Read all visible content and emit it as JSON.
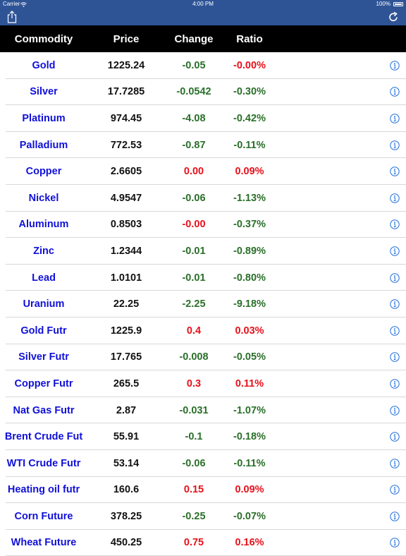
{
  "status_bar": {
    "carrier": "Carrier",
    "time": "4:00 PM",
    "battery": "100%"
  },
  "nav": {
    "left_icon": "share-icon",
    "right_icon": "refresh-icon",
    "bar_color": "#2f5496"
  },
  "table": {
    "headers": {
      "name": "Commodity",
      "price": "Price",
      "change": "Change",
      "ratio": "Ratio"
    },
    "rows": [
      {
        "name": "Gold",
        "price": "1225.24",
        "change": "-0.05",
        "ratio": "-0.00%",
        "change_dir": "up",
        "ratio_dir": "down"
      },
      {
        "name": "Silver",
        "price": "17.7285",
        "change": "-0.0542",
        "ratio": "-0.30%",
        "change_dir": "up",
        "ratio_dir": "up"
      },
      {
        "name": "Platinum",
        "price": "974.45",
        "change": "-4.08",
        "ratio": "-0.42%",
        "change_dir": "up",
        "ratio_dir": "up"
      },
      {
        "name": "Palladium",
        "price": "772.53",
        "change": "-0.87",
        "ratio": "-0.11%",
        "change_dir": "up",
        "ratio_dir": "up"
      },
      {
        "name": "Copper",
        "price": "2.6605",
        "change": "0.00",
        "ratio": "0.09%",
        "change_dir": "down",
        "ratio_dir": "down"
      },
      {
        "name": "Nickel",
        "price": "4.9547",
        "change": "-0.06",
        "ratio": "-1.13%",
        "change_dir": "up",
        "ratio_dir": "up"
      },
      {
        "name": "Aluminum",
        "price": "0.8503",
        "change": "-0.00",
        "ratio": "-0.37%",
        "change_dir": "down",
        "ratio_dir": "up"
      },
      {
        "name": "Zinc",
        "price": "1.2344",
        "change": "-0.01",
        "ratio": "-0.89%",
        "change_dir": "up",
        "ratio_dir": "up"
      },
      {
        "name": "Lead",
        "price": "1.0101",
        "change": "-0.01",
        "ratio": "-0.80%",
        "change_dir": "up",
        "ratio_dir": "up"
      },
      {
        "name": "Uranium",
        "price": "22.25",
        "change": "-2.25",
        "ratio": "-9.18%",
        "change_dir": "up",
        "ratio_dir": "up"
      },
      {
        "name": "Gold Futr",
        "price": "1225.9",
        "change": "0.4",
        "ratio": "0.03%",
        "change_dir": "down",
        "ratio_dir": "down"
      },
      {
        "name": "Silver Futr",
        "price": "17.765",
        "change": "-0.008",
        "ratio": "-0.05%",
        "change_dir": "up",
        "ratio_dir": "up"
      },
      {
        "name": "Copper Futr",
        "price": "265.5",
        "change": "0.3",
        "ratio": "0.11%",
        "change_dir": "down",
        "ratio_dir": "down"
      },
      {
        "name": "Nat Gas Futr",
        "price": "2.87",
        "change": "-0.031",
        "ratio": "-1.07%",
        "change_dir": "up",
        "ratio_dir": "up"
      },
      {
        "name": "Brent Crude Fut",
        "price": "55.91",
        "change": "-0.1",
        "ratio": "-0.18%",
        "change_dir": "up",
        "ratio_dir": "up"
      },
      {
        "name": "WTI Crude Futr",
        "price": "53.14",
        "change": "-0.06",
        "ratio": "-0.11%",
        "change_dir": "up",
        "ratio_dir": "up"
      },
      {
        "name": "Heating oil futr",
        "price": "160.6",
        "change": "0.15",
        "ratio": "0.09%",
        "change_dir": "down",
        "ratio_dir": "down"
      },
      {
        "name": "Corn Future",
        "price": "378.25",
        "change": "-0.25",
        "ratio": "-0.07%",
        "change_dir": "up",
        "ratio_dir": "up"
      },
      {
        "name": "Wheat Future",
        "price": "450.25",
        "change": "0.75",
        "ratio": "0.16%",
        "change_dir": "down",
        "ratio_dir": "down"
      }
    ],
    "row_icon": "info-icon",
    "colors": {
      "name": "#1010d8",
      "positive_style": "#2a6f2a",
      "negative_style": "#e8101a",
      "header_bg": "#000000"
    }
  }
}
